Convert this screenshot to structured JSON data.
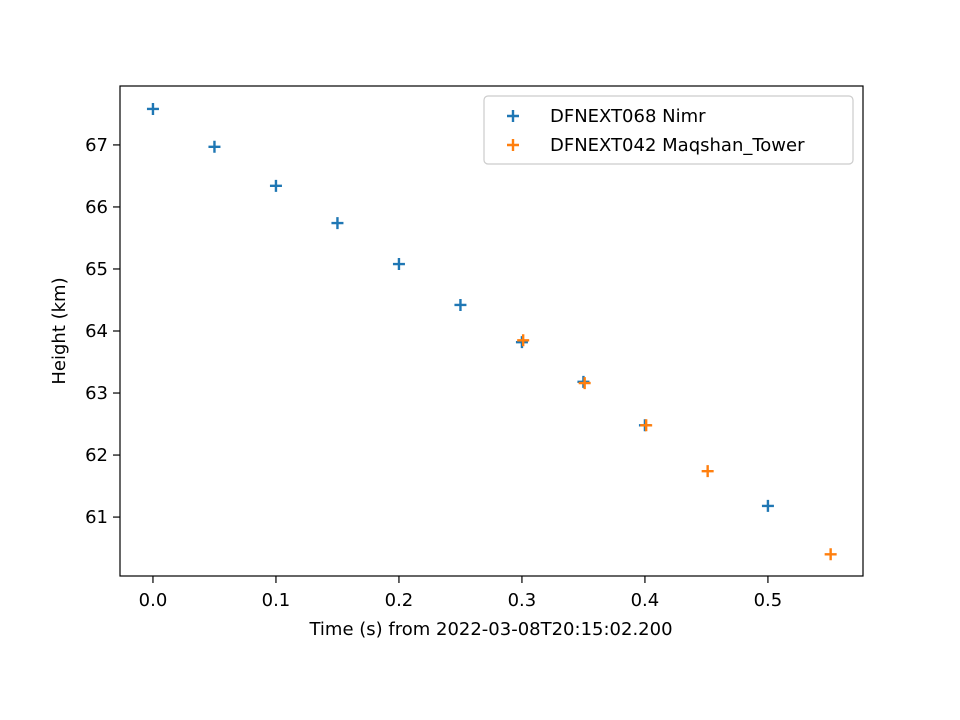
{
  "chart_data": {
    "type": "scatter",
    "xlabel": "Time (s) from 2022-03-08T20:15:02.200",
    "ylabel": "Height (km)",
    "xlim": [
      -0.0268,
      0.5773
    ],
    "ylim": [
      60.05,
      67.95
    ],
    "xticks": [
      {
        "value": 0,
        "label": "0.0"
      },
      0.1,
      0.2,
      0.3,
      0.4,
      0.5
    ],
    "yticks": [
      61,
      62,
      63,
      64,
      65,
      66,
      67
    ],
    "legend": "upper right",
    "marker": "+",
    "series": [
      {
        "name": "DFNEXT068 Nimr",
        "color": "#1f77b4",
        "x": [
          0,
          0.05,
          0.1,
          0.15,
          0.2,
          0.25,
          0.3,
          0.35,
          0.4,
          0.5
        ],
        "values": [
          67.58,
          66.97,
          66.34,
          65.74,
          65.08,
          64.42,
          63.82,
          63.18,
          62.48,
          61.18
        ]
      },
      {
        "name": "DFNEXT042 Maqshan_Tower",
        "color": "#ff7f0e",
        "x": [
          0.301,
          0.351,
          0.401,
          0.451,
          0.551
        ],
        "values": [
          63.85,
          63.16,
          62.48,
          61.74,
          60.4
        ]
      }
    ]
  }
}
